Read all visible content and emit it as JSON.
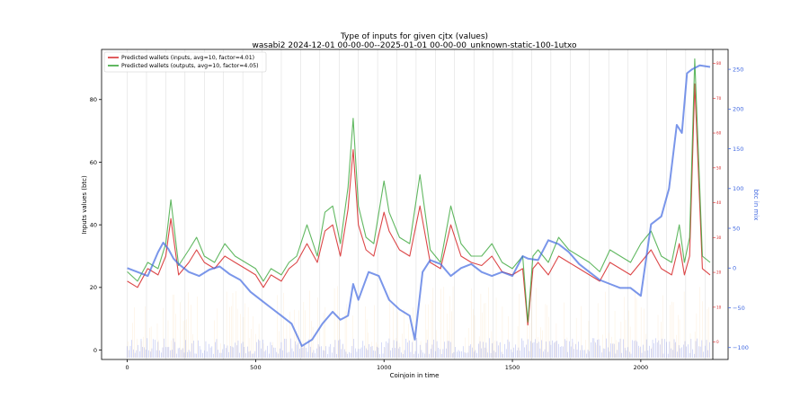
{
  "chart_data": {
    "type": "line",
    "title": "Type of inputs for given cjtx (values)",
    "subtitle": "wasabi2 2024-12-01 00-00-00--2025-01-01 00-00-00_unknown-static-100-1utxo",
    "xlabel": "Coinjoin in time",
    "ylabel": "Inputs values (btc)",
    "y2label": "btc in mix",
    "xlim": [
      -100,
      2340
    ],
    "ylim": [
      -3,
      96
    ],
    "y2lim": [
      -115,
      275
    ],
    "y3lim": [
      -5,
      84
    ],
    "xticks": [
      "0",
      "500",
      "1000",
      "1500",
      "2000"
    ],
    "yticks": [
      "0",
      "20",
      "40",
      "60",
      "80"
    ],
    "y2ticks": [
      "−100",
      "−50",
      "0",
      "50",
      "100",
      "150",
      "200",
      "250"
    ],
    "y3ticks": [
      "0",
      "10",
      "20",
      "30",
      "40",
      "50",
      "60",
      "70",
      "80"
    ],
    "grid": "vertical lines at day boundaries",
    "legend_position": "top-left",
    "legend": [
      "Predicted wallets (inputs, avg=10, factor=4.01)",
      "Predicted wallets (outputs, avg=10, factor=4.05)"
    ],
    "colors": {
      "inputs": "#d62728",
      "outputs": "#2ca02c",
      "btc_in_mix": "#4169e1",
      "right_axis_red": "#d62728",
      "right_axis_blue": "#4169e1"
    },
    "series": [
      {
        "name": "Predicted wallets (inputs, avg=10, factor=4.01)",
        "axis": "left",
        "x": [
          0,
          40,
          80,
          120,
          150,
          170,
          200,
          240,
          270,
          300,
          340,
          380,
          420,
          460,
          500,
          530,
          560,
          600,
          630,
          660,
          700,
          740,
          770,
          800,
          830,
          860,
          880,
          900,
          930,
          960,
          1000,
          1020,
          1060,
          1100,
          1140,
          1180,
          1220,
          1260,
          1300,
          1340,
          1380,
          1420,
          1460,
          1500,
          1540,
          1560,
          1580,
          1600,
          1640,
          1680,
          1720,
          1760,
          1800,
          1840,
          1880,
          1920,
          1960,
          2000,
          2040,
          2080,
          2120,
          2150,
          2170,
          2190,
          2210,
          2240,
          2270
        ],
        "values": [
          22,
          20,
          26,
          24,
          30,
          42,
          24,
          28,
          32,
          28,
          26,
          30,
          28,
          26,
          24,
          20,
          24,
          22,
          26,
          28,
          34,
          28,
          38,
          40,
          30,
          45,
          64,
          40,
          32,
          30,
          44,
          38,
          32,
          30,
          46,
          28,
          26,
          40,
          30,
          28,
          27,
          30,
          25,
          24,
          26,
          8,
          26,
          28,
          24,
          30,
          28,
          26,
          24,
          22,
          28,
          26,
          24,
          28,
          32,
          26,
          24,
          34,
          24,
          30,
          85,
          26,
          24
        ]
      },
      {
        "name": "Predicted wallets (outputs, avg=10, factor=4.05)",
        "axis": "left",
        "x": [
          0,
          40,
          80,
          120,
          150,
          170,
          200,
          240,
          270,
          300,
          340,
          380,
          420,
          460,
          500,
          530,
          560,
          600,
          630,
          660,
          700,
          740,
          770,
          800,
          830,
          860,
          880,
          900,
          930,
          960,
          1000,
          1020,
          1060,
          1100,
          1140,
          1180,
          1220,
          1260,
          1300,
          1340,
          1380,
          1420,
          1460,
          1500,
          1540,
          1560,
          1580,
          1600,
          1640,
          1680,
          1720,
          1760,
          1800,
          1840,
          1880,
          1920,
          1960,
          2000,
          2040,
          2080,
          2120,
          2150,
          2170,
          2190,
          2210,
          2240,
          2270
        ],
        "values": [
          25,
          22,
          28,
          26,
          34,
          48,
          27,
          32,
          36,
          30,
          28,
          34,
          30,
          28,
          26,
          22,
          26,
          24,
          28,
          30,
          40,
          30,
          44,
          46,
          34,
          52,
          74,
          46,
          36,
          34,
          54,
          44,
          36,
          34,
          56,
          32,
          28,
          46,
          34,
          30,
          30,
          34,
          28,
          26,
          30,
          9,
          30,
          32,
          28,
          36,
          32,
          30,
          28,
          25,
          32,
          30,
          28,
          34,
          38,
          30,
          28,
          40,
          28,
          36,
          93,
          30,
          28
        ]
      },
      {
        "name": "btc in mix",
        "axis": "right",
        "x": [
          0,
          40,
          80,
          120,
          140,
          160,
          180,
          200,
          240,
          280,
          320,
          360,
          400,
          440,
          480,
          520,
          560,
          600,
          640,
          680,
          720,
          760,
          800,
          830,
          860,
          880,
          900,
          940,
          980,
          1020,
          1060,
          1100,
          1120,
          1150,
          1180,
          1220,
          1260,
          1300,
          1340,
          1380,
          1420,
          1460,
          1500,
          1540,
          1560,
          1600,
          1640,
          1680,
          1720,
          1760,
          1800,
          1840,
          1880,
          1920,
          1960,
          2000,
          2040,
          2080,
          2110,
          2140,
          2160,
          2180,
          2200,
          2230,
          2270
        ],
        "values": [
          0,
          -5,
          -10,
          20,
          32,
          24,
          12,
          5,
          -5,
          -10,
          -2,
          2,
          -8,
          -15,
          -30,
          -40,
          -50,
          -60,
          -70,
          -98,
          -90,
          -70,
          -55,
          -65,
          -60,
          -20,
          -40,
          -5,
          -10,
          -40,
          -52,
          -60,
          -90,
          -5,
          10,
          5,
          -10,
          0,
          5,
          -5,
          -10,
          -5,
          -10,
          15,
          12,
          10,
          35,
          30,
          20,
          5,
          -5,
          -15,
          -20,
          -25,
          -25,
          -35,
          55,
          65,
          100,
          180,
          170,
          245,
          250,
          255,
          253
        ]
      }
    ]
  }
}
